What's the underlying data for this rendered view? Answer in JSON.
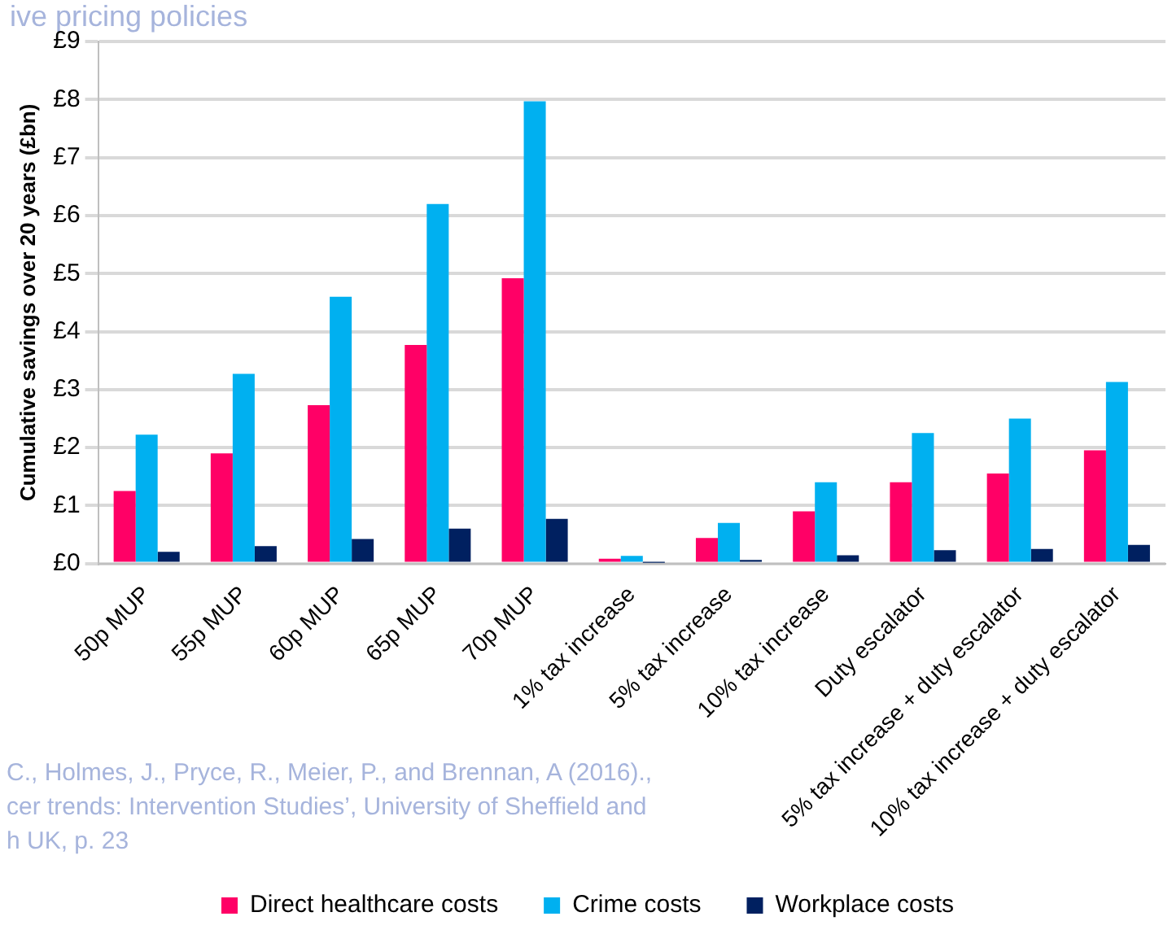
{
  "chart_data": {
    "type": "bar",
    "title": "ive pricing policies",
    "ylabel": "Cumulative savings over 20 years (£bn)",
    "categories": [
      "50p MUP",
      "55p MUP",
      "60p MUP",
      "65p MUP",
      "70p MUP",
      "1% tax increase",
      "5% tax increase",
      "10% tax increase",
      "Duty escalator",
      "5% tax increase + duty escalator",
      "10% tax increase + duty escalator"
    ],
    "series": [
      {
        "name": "Direct healthcare costs",
        "color": "#ff0066",
        "values": [
          1.25,
          1.9,
          2.73,
          3.77,
          4.92,
          0.08,
          0.44,
          0.9,
          1.4,
          1.55,
          1.95
        ]
      },
      {
        "name": "Crime costs",
        "color": "#00b0f0",
        "values": [
          2.22,
          3.27,
          4.6,
          6.2,
          7.97,
          0.13,
          0.7,
          1.4,
          2.25,
          2.5,
          3.13
        ]
      },
      {
        "name": "Workplace costs",
        "color": "#002060",
        "values": [
          0.2,
          0.3,
          0.42,
          0.6,
          0.77,
          0.01,
          0.06,
          0.14,
          0.23,
          0.25,
          0.32
        ]
      }
    ],
    "ylim": [
      0,
      9
    ],
    "yticks": [
      {
        "value": 0,
        "label": "£0"
      },
      {
        "value": 1,
        "label": "£1"
      },
      {
        "value": 2,
        "label": "£2"
      },
      {
        "value": 3,
        "label": "£3"
      },
      {
        "value": 4,
        "label": "£4"
      },
      {
        "value": 5,
        "label": "£5"
      },
      {
        "value": 6,
        "label": "£6"
      },
      {
        "value": 7,
        "label": "£7"
      },
      {
        "value": 8,
        "label": "£8"
      },
      {
        "value": 9,
        "label": "£9"
      }
    ],
    "grid": "y",
    "legend": "bottom",
    "annotations": [
      "C., Holmes, J., Pryce, R., Meier, P., and Brennan, A (2016).,",
      "cer trends: Intervention Studies’, University of Sheffield and",
      "h UK, p. 23"
    ]
  }
}
